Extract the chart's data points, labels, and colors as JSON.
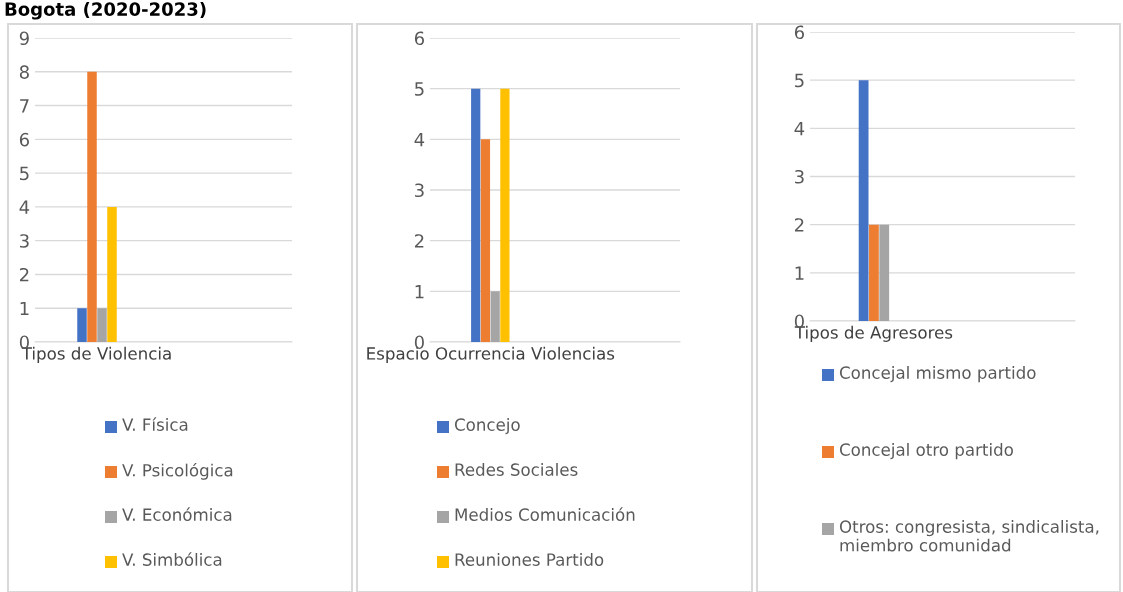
{
  "chart_data": [
    {
      "type": "bar",
      "title": "Bogota (2020-2023)",
      "categories": [
        "Tipos de Violencia"
      ],
      "ylim": [
        0,
        9
      ],
      "yticks": [
        0,
        1,
        2,
        3,
        4,
        5,
        6,
        7,
        8,
        9
      ],
      "grid": "y",
      "legend": "bottom",
      "series": [
        {
          "name": "V. Física",
          "color": "#4472c4",
          "values": [
            1
          ]
        },
        {
          "name": "V. Psicológica",
          "color": "#ed7d31",
          "values": [
            8
          ]
        },
        {
          "name": "V. Económica",
          "color": "#a5a5a5",
          "values": [
            1
          ]
        },
        {
          "name": "V. Simbólica",
          "color": "#ffc000",
          "values": [
            4
          ]
        }
      ]
    },
    {
      "type": "bar",
      "categories": [
        "Espacio Ocurrencia Violencias"
      ],
      "ylim": [
        0,
        6
      ],
      "yticks": [
        0,
        1,
        2,
        3,
        4,
        5,
        6
      ],
      "grid": "y",
      "legend": "bottom",
      "series": [
        {
          "name": "Concejo",
          "color": "#4472c4",
          "values": [
            5
          ]
        },
        {
          "name": "Redes Sociales",
          "color": "#ed7d31",
          "values": [
            4
          ]
        },
        {
          "name": "Medios Comunicación",
          "color": "#a5a5a5",
          "values": [
            1
          ]
        },
        {
          "name": "Reuniones Partido",
          "color": "#ffc000",
          "values": [
            5
          ]
        }
      ]
    },
    {
      "type": "bar",
      "categories": [
        "Tipos de Agresores"
      ],
      "ylim": [
        0,
        6
      ],
      "yticks": [
        0,
        1,
        2,
        3,
        4,
        5,
        6
      ],
      "grid": "y",
      "legend": "bottom",
      "series": [
        {
          "name": "Concejal mismo partido",
          "color": "#4472c4",
          "values": [
            5
          ]
        },
        {
          "name": "Concejal otro partido",
          "color": "#ed7d31",
          "values": [
            2
          ]
        },
        {
          "name": "Otros: congresista, sindicalista, miembro comunidad",
          "color": "#a5a5a5",
          "values": [
            2
          ]
        }
      ]
    }
  ]
}
